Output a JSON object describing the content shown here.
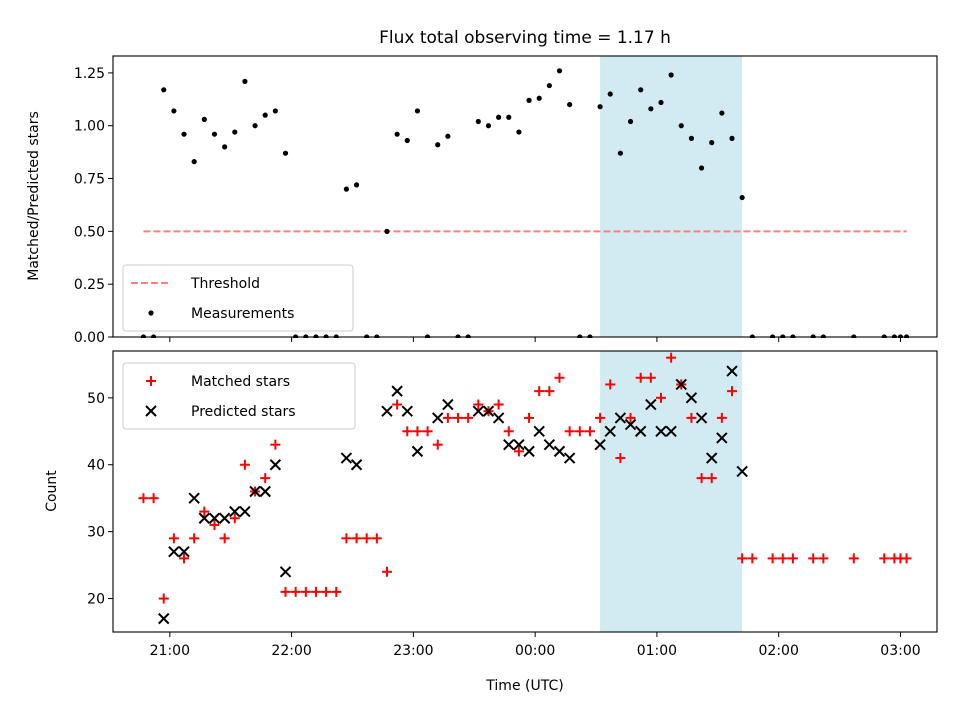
{
  "chart_data": [
    {
      "type": "scatter",
      "title": "Flux total observing time = 1.17 h",
      "xlabel": "",
      "ylabel": "Matched/Predicted stars",
      "ylim": [
        0,
        1.33
      ],
      "yticks": [
        0.0,
        0.25,
        0.5,
        0.75,
        1.0,
        1.25
      ],
      "ytick_labels": [
        "0.00",
        "0.25",
        "0.50",
        "0.75",
        "1.00",
        "1.25"
      ],
      "x_axis": "time",
      "xlim": [
        "20:32",
        "03:18"
      ],
      "xticks": [
        "21:00",
        "22:00",
        "23:00",
        "00:00",
        "01:00",
        "02:00",
        "03:00"
      ],
      "xtick_labels_visible": false,
      "grid": false,
      "legend_position": "lower-left",
      "shaded_span": {
        "start": "00:32",
        "end": "01:42",
        "color": "#add8e6"
      },
      "threshold": {
        "name": "Threshold",
        "value": 0.5,
        "x_start": "20:47",
        "x_end": "03:03",
        "color": "#ff7f7f",
        "style": "dashed"
      },
      "series": [
        {
          "name": "Measurements",
          "marker": "dot",
          "color": "#000000",
          "points": [
            [
              "20:47",
              0.0
            ],
            [
              "20:52",
              0.0
            ],
            [
              "20:57",
              1.17
            ],
            [
              "21:02",
              1.07
            ],
            [
              "21:07",
              0.96
            ],
            [
              "21:12",
              0.83
            ],
            [
              "21:17",
              1.03
            ],
            [
              "21:22",
              0.96
            ],
            [
              "21:27",
              0.9
            ],
            [
              "21:32",
              0.97
            ],
            [
              "21:37",
              1.21
            ],
            [
              "21:42",
              1.0
            ],
            [
              "21:47",
              1.05
            ],
            [
              "21:52",
              1.07
            ],
            [
              "21:57",
              0.87
            ],
            [
              "22:02",
              0.0
            ],
            [
              "22:07",
              0.0
            ],
            [
              "22:12",
              0.0
            ],
            [
              "22:17",
              0.0
            ],
            [
              "22:22",
              0.0
            ],
            [
              "22:27",
              0.7
            ],
            [
              "22:32",
              0.72
            ],
            [
              "22:37",
              0.0
            ],
            [
              "22:42",
              0.0
            ],
            [
              "22:47",
              0.5
            ],
            [
              "22:52",
              0.96
            ],
            [
              "22:57",
              0.93
            ],
            [
              "23:02",
              1.07
            ],
            [
              "23:07",
              0.0
            ],
            [
              "23:12",
              0.91
            ],
            [
              "23:17",
              0.95
            ],
            [
              "23:22",
              0.0
            ],
            [
              "23:27",
              0.0
            ],
            [
              "23:32",
              1.02
            ],
            [
              "23:37",
              1.0
            ],
            [
              "23:42",
              1.04
            ],
            [
              "23:47",
              1.04
            ],
            [
              "23:52",
              0.97
            ],
            [
              "23:57",
              1.12
            ],
            [
              "00:02",
              1.13
            ],
            [
              "00:07",
              1.19
            ],
            [
              "00:12",
              1.26
            ],
            [
              "00:17",
              1.1
            ],
            [
              "00:22",
              0.0
            ],
            [
              "00:27",
              0.0
            ],
            [
              "00:32",
              1.09
            ],
            [
              "00:37",
              1.15
            ],
            [
              "00:42",
              0.87
            ],
            [
              "00:47",
              1.02
            ],
            [
              "00:52",
              1.17
            ],
            [
              "00:57",
              1.08
            ],
            [
              "01:02",
              1.11
            ],
            [
              "01:07",
              1.24
            ],
            [
              "01:12",
              1.0
            ],
            [
              "01:17",
              0.94
            ],
            [
              "01:22",
              0.8
            ],
            [
              "01:27",
              0.92
            ],
            [
              "01:32",
              1.06
            ],
            [
              "01:37",
              0.94
            ],
            [
              "01:42",
              0.66
            ],
            [
              "01:47",
              0.0
            ],
            [
              "01:57",
              0.0
            ],
            [
              "02:02",
              0.0
            ],
            [
              "02:07",
              0.0
            ],
            [
              "02:17",
              0.0
            ],
            [
              "02:22",
              0.0
            ],
            [
              "02:37",
              0.0
            ],
            [
              "02:52",
              0.0
            ],
            [
              "02:57",
              0.0
            ],
            [
              "03:00",
              0.0
            ],
            [
              "03:03",
              0.0
            ]
          ]
        }
      ]
    },
    {
      "type": "scatter",
      "title": "",
      "xlabel": "Time (UTC)",
      "ylabel": "Count",
      "ylim": [
        15,
        57
      ],
      "yticks": [
        20,
        30,
        40,
        50
      ],
      "ytick_labels": [
        "20",
        "30",
        "40",
        "50"
      ],
      "x_axis": "time",
      "xlim": [
        "20:32",
        "03:18"
      ],
      "xticks": [
        "21:00",
        "22:00",
        "23:00",
        "00:00",
        "01:00",
        "02:00",
        "03:00"
      ],
      "xtick_labels": [
        "21:00",
        "22:00",
        "23:00",
        "00:00",
        "01:00",
        "02:00",
        "03:00"
      ],
      "grid": false,
      "legend_position": "upper-left",
      "shaded_span": {
        "start": "00:32",
        "end": "01:42",
        "color": "#add8e6"
      },
      "series": [
        {
          "name": "Matched stars",
          "marker": "plus",
          "color": "#ff0000",
          "points": [
            [
              "20:47",
              35
            ],
            [
              "20:52",
              35
            ],
            [
              "20:57",
              20
            ],
            [
              "21:02",
              29
            ],
            [
              "21:07",
              26
            ],
            [
              "21:12",
              29
            ],
            [
              "21:17",
              33
            ],
            [
              "21:22",
              31
            ],
            [
              "21:27",
              29
            ],
            [
              "21:32",
              32
            ],
            [
              "21:37",
              40
            ],
            [
              "21:42",
              36
            ],
            [
              "21:47",
              38
            ],
            [
              "21:52",
              43
            ],
            [
              "21:57",
              21
            ],
            [
              "22:02",
              21
            ],
            [
              "22:07",
              21
            ],
            [
              "22:12",
              21
            ],
            [
              "22:17",
              21
            ],
            [
              "22:22",
              21
            ],
            [
              "22:27",
              29
            ],
            [
              "22:32",
              29
            ],
            [
              "22:37",
              29
            ],
            [
              "22:42",
              29
            ],
            [
              "22:47",
              24
            ],
            [
              "22:52",
              49
            ],
            [
              "22:57",
              45
            ],
            [
              "23:02",
              45
            ],
            [
              "23:07",
              45
            ],
            [
              "23:12",
              43
            ],
            [
              "23:17",
              47
            ],
            [
              "23:22",
              47
            ],
            [
              "23:27",
              47
            ],
            [
              "23:32",
              49
            ],
            [
              "23:37",
              48
            ],
            [
              "23:42",
              49
            ],
            [
              "23:47",
              45
            ],
            [
              "23:52",
              42
            ],
            [
              "23:57",
              47
            ],
            [
              "00:02",
              51
            ],
            [
              "00:07",
              51
            ],
            [
              "00:12",
              53
            ],
            [
              "00:17",
              45
            ],
            [
              "00:22",
              45
            ],
            [
              "00:27",
              45
            ],
            [
              "00:32",
              47
            ],
            [
              "00:37",
              52
            ],
            [
              "00:42",
              41
            ],
            [
              "00:47",
              47
            ],
            [
              "00:52",
              53
            ],
            [
              "00:57",
              53
            ],
            [
              "01:02",
              50
            ],
            [
              "01:07",
              56
            ],
            [
              "01:12",
              52
            ],
            [
              "01:17",
              47
            ],
            [
              "01:22",
              38
            ],
            [
              "01:27",
              38
            ],
            [
              "01:32",
              47
            ],
            [
              "01:37",
              51
            ],
            [
              "01:42",
              26
            ],
            [
              "01:47",
              26
            ],
            [
              "01:57",
              26
            ],
            [
              "02:02",
              26
            ],
            [
              "02:07",
              26
            ],
            [
              "02:17",
              26
            ],
            [
              "02:22",
              26
            ],
            [
              "02:37",
              26
            ],
            [
              "02:52",
              26
            ],
            [
              "02:57",
              26
            ],
            [
              "03:00",
              26
            ],
            [
              "03:03",
              26
            ]
          ]
        },
        {
          "name": "Predicted stars",
          "marker": "x",
          "color": "#000000",
          "points": [
            [
              "20:57",
              17
            ],
            [
              "21:02",
              27
            ],
            [
              "21:07",
              27
            ],
            [
              "21:12",
              35
            ],
            [
              "21:17",
              32
            ],
            [
              "21:22",
              32
            ],
            [
              "21:27",
              32
            ],
            [
              "21:32",
              33
            ],
            [
              "21:37",
              33
            ],
            [
              "21:42",
              36
            ],
            [
              "21:47",
              36
            ],
            [
              "21:52",
              40
            ],
            [
              "21:57",
              24
            ],
            [
              "22:27",
              41
            ],
            [
              "22:32",
              40
            ],
            [
              "22:47",
              48
            ],
            [
              "22:52",
              51
            ],
            [
              "22:57",
              48
            ],
            [
              "23:02",
              42
            ],
            [
              "23:12",
              47
            ],
            [
              "23:17",
              49
            ],
            [
              "23:32",
              48
            ],
            [
              "23:37",
              48
            ],
            [
              "23:42",
              47
            ],
            [
              "23:47",
              43
            ],
            [
              "23:52",
              43
            ],
            [
              "23:57",
              42
            ],
            [
              "00:02",
              45
            ],
            [
              "00:07",
              43
            ],
            [
              "00:12",
              42
            ],
            [
              "00:17",
              41
            ],
            [
              "00:32",
              43
            ],
            [
              "00:37",
              45
            ],
            [
              "00:42",
              47
            ],
            [
              "00:47",
              46
            ],
            [
              "00:52",
              45
            ],
            [
              "00:57",
              49
            ],
            [
              "01:02",
              45
            ],
            [
              "01:07",
              45
            ],
            [
              "01:12",
              52
            ],
            [
              "01:17",
              50
            ],
            [
              "01:22",
              47
            ],
            [
              "01:27",
              41
            ],
            [
              "01:32",
              44
            ],
            [
              "01:37",
              54
            ],
            [
              "01:42",
              39
            ]
          ]
        }
      ]
    }
  ]
}
